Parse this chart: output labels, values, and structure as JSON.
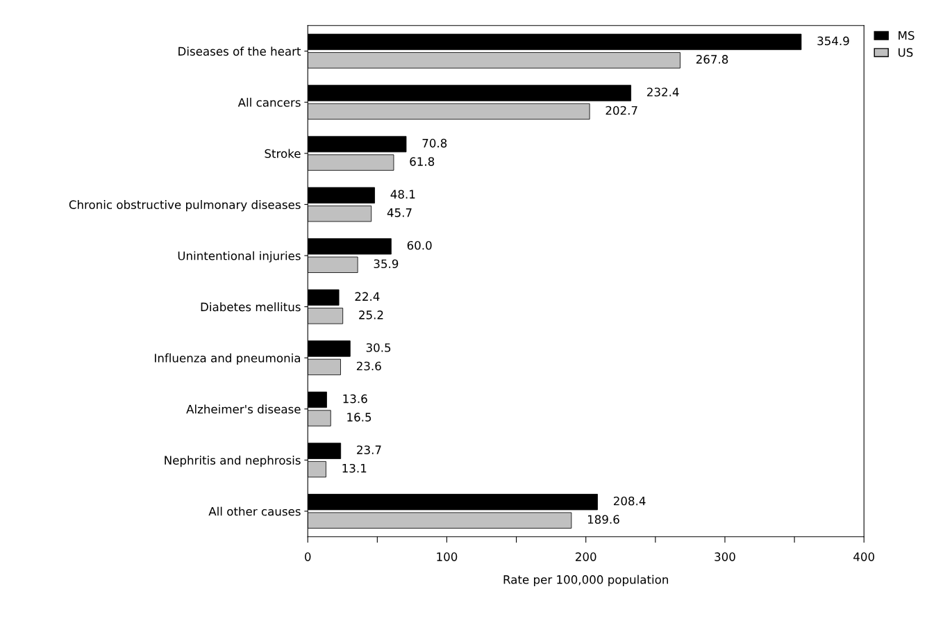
{
  "chart_data": {
    "type": "bar",
    "orientation": "horizontal",
    "xlabel": "Rate per 100,000 population",
    "categories": [
      "Diseases of the heart",
      "All cancers",
      "Stroke",
      "Chronic obstructive pulmonary diseases",
      "Unintentional injuries",
      "Diabetes mellitus",
      "Influenza and pneumonia",
      "Alzheimer's disease",
      "Nephritis and nephrosis",
      "All other causes"
    ],
    "series": [
      {
        "name": "MS",
        "color": "#000000",
        "values": [
          354.9,
          232.4,
          70.8,
          48.1,
          60.0,
          22.4,
          30.5,
          13.6,
          23.7,
          208.4
        ],
        "value_labels": [
          "354.9",
          "232.4",
          "70.8",
          "48.1",
          "60.0",
          "22.4",
          "30.5",
          "13.6",
          "23.7",
          "208.4"
        ]
      },
      {
        "name": "US",
        "color": "#c0c0c0",
        "values": [
          267.8,
          202.7,
          61.8,
          45.7,
          35.9,
          25.2,
          23.6,
          16.5,
          13.1,
          189.6
        ],
        "value_labels": [
          "267.8",
          "202.7",
          "61.8",
          "45.7",
          "35.9",
          "25.2",
          "23.6",
          "16.5",
          "13.1",
          "189.6"
        ]
      }
    ],
    "xlim": [
      0,
      400
    ],
    "xticks": [
      0,
      {
        "value": 50,
        "label": null
      },
      100,
      {
        "value": 150,
        "label": null
      },
      200,
      {
        "value": 250,
        "label": null
      },
      300,
      {
        "value": 350,
        "label": null
      },
      400
    ],
    "legend": "top right",
    "grid": false
  }
}
